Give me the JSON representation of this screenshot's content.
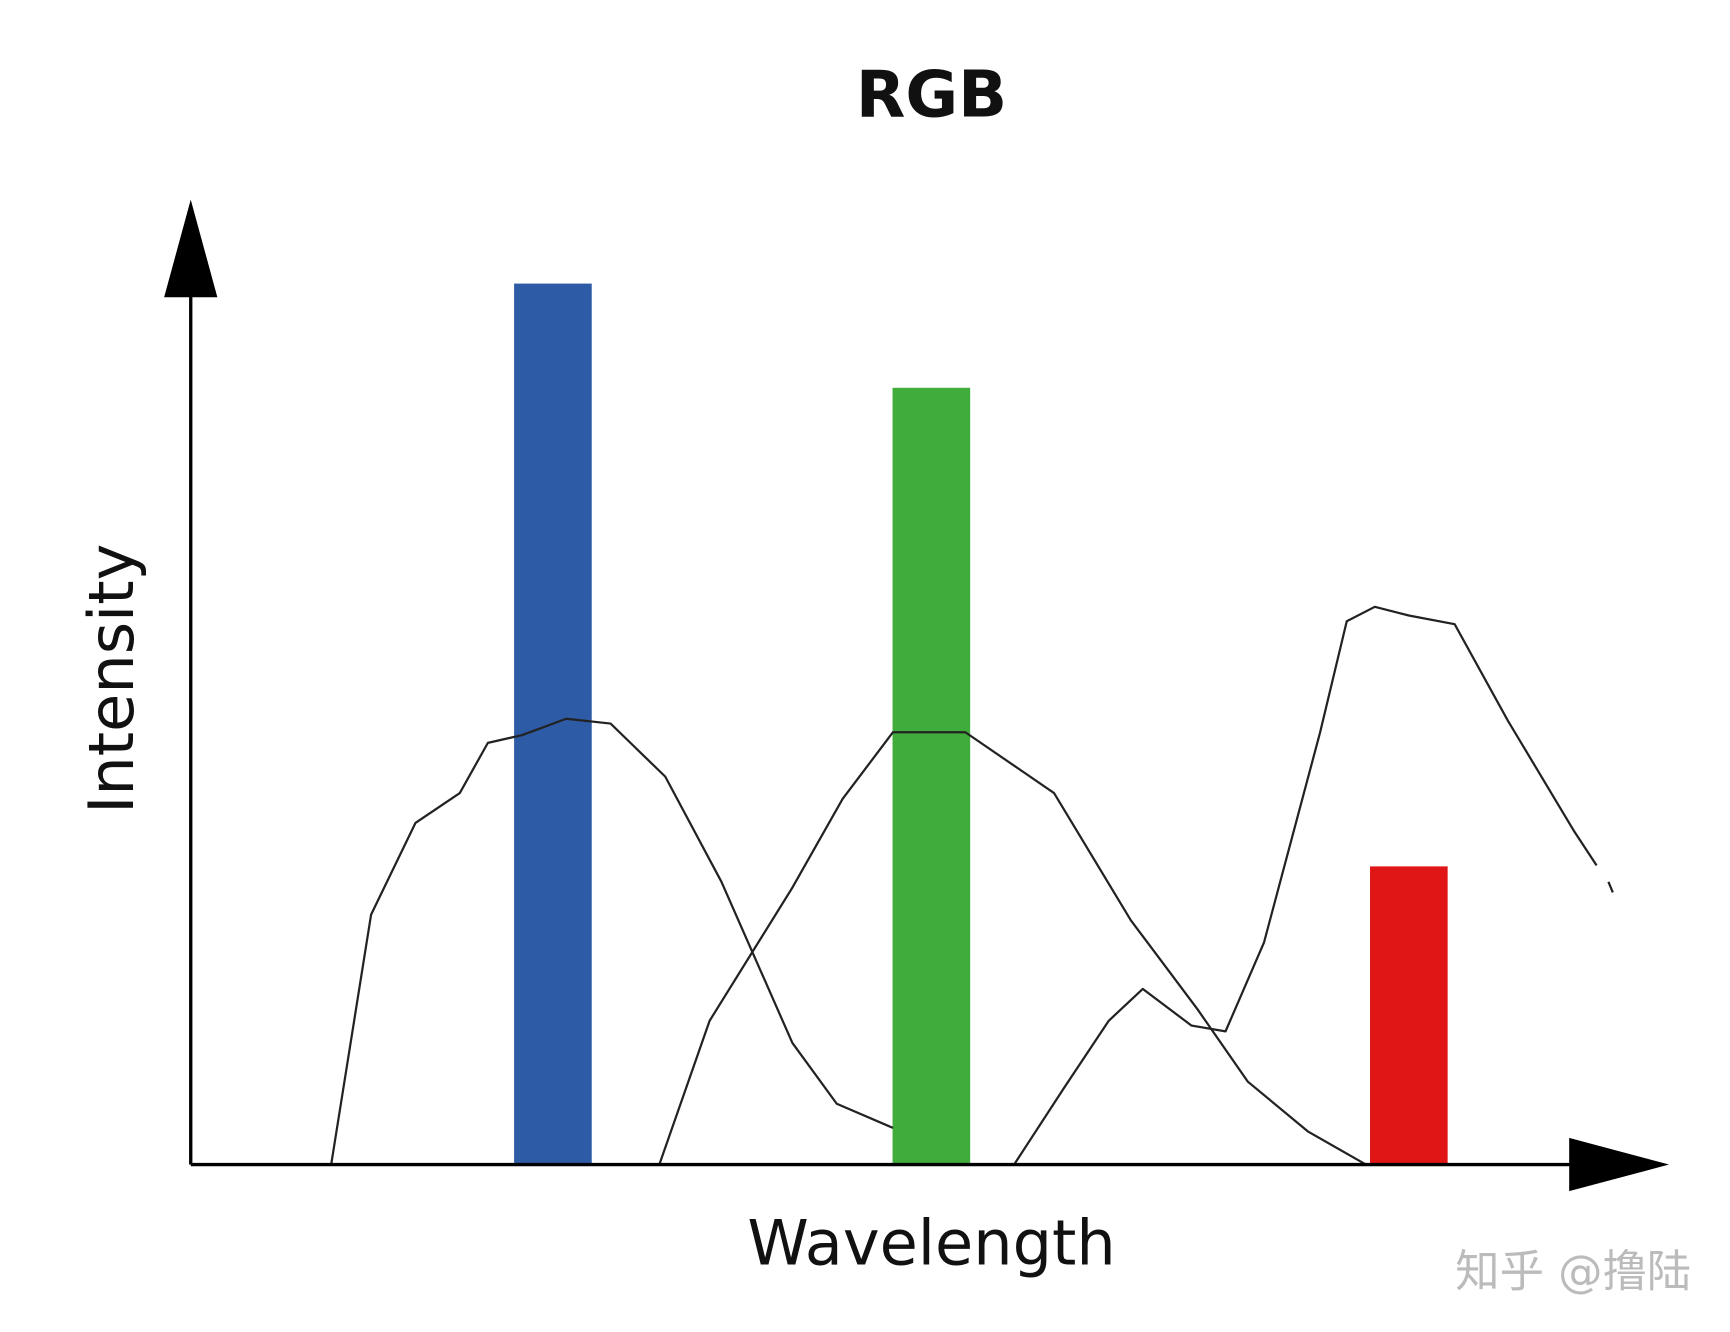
{
  "chart_data": {
    "type": "bar",
    "title": "RGB",
    "xlabel": "Wavelength",
    "ylabel": "Intensity",
    "xlim": [
      0,
      100
    ],
    "ylim": [
      0,
      100
    ],
    "x": [
      24.5,
      50.1,
      82.4
    ],
    "values": [
      91.3,
      80.5,
      30.9
    ],
    "colors": [
      "#2e5ba5",
      "#3fac3b",
      "#e01616"
    ],
    "curves": [
      {
        "color": "#222222",
        "x": [
          9.5,
          12.2,
          15.2,
          18.2,
          20.1,
          22.4,
          25.4,
          28.4,
          32.1,
          35.9,
          40.7,
          43.7,
          47.5
        ],
        "values": [
          0,
          25.9,
          35.4,
          38.5,
          43.7,
          44.5,
          46.2,
          45.7,
          40.2,
          29.3,
          12.6,
          6.3,
          3.8
        ]
      },
      {
        "color": "#222222",
        "x": [
          31.7,
          35.1,
          40.7,
          44.1,
          47.5,
          52.4,
          58.4,
          63.6,
          68.1,
          71.5,
          75.6,
          79.5
        ],
        "values": [
          0,
          14.9,
          28.7,
          37.9,
          44.8,
          44.8,
          38.5,
          25.3,
          16.1,
          8.6,
          3.4,
          0
        ]
      },
      {
        "color": "#222222",
        "x": [
          55.7,
          59.1,
          62.1,
          64.4,
          67.7,
          70.0,
          72.6,
          76.4,
          78.2,
          80.1,
          82.4,
          85.5,
          89.1,
          93.6,
          94.5,
          95.1,
          95.5,
          95.9,
          96.2
        ],
        "values": [
          0,
          8.0,
          14.9,
          18.2,
          14.4,
          13.8,
          23.0,
          44.8,
          56.3,
          57.8,
          56.9,
          56.0,
          46.0,
          34.5,
          32.4,
          31.0,
          null,
          29.3,
          28.2
        ]
      }
    ],
    "watermark": "知乎 @撸陆"
  }
}
